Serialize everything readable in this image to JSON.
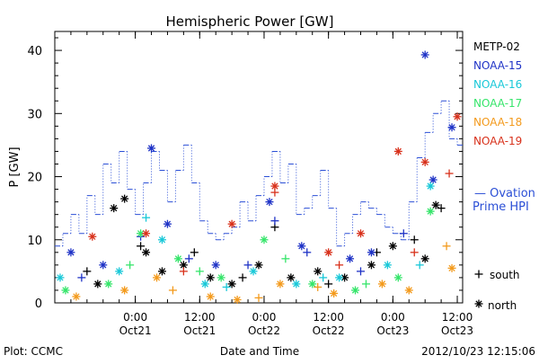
{
  "title": "Hemispheric Power [GW]",
  "footer": {
    "plot_label": "Plot: CCMC",
    "timestamp": "2012/10/23 12:15:06"
  },
  "chart_data": {
    "type": "scatter",
    "title": "Hemispheric Power [GW]",
    "xlabel": "Date and Time",
    "ylabel": "P [GW]",
    "xlim": [
      "2012-10-20T09:00",
      "2012-10-23T13:00"
    ],
    "ylim": [
      0,
      43
    ],
    "x_ticks": [
      {
        "time": "2012-10-21T00:00",
        "label_top": "0:00",
        "label_bottom": "Oct21"
      },
      {
        "time": "2012-10-21T12:00",
        "label_top": "12:00",
        "label_bottom": "Oct21"
      },
      {
        "time": "2012-10-22T00:00",
        "label_top": "0:00",
        "label_bottom": "Oct22"
      },
      {
        "time": "2012-10-22T12:00",
        "label_top": "12:00",
        "label_bottom": "Oct22"
      },
      {
        "time": "2012-10-23T00:00",
        "label_top": "0:00",
        "label_bottom": "Oct23"
      },
      {
        "time": "2012-10-23T12:00",
        "label_top": "12:00",
        "label_bottom": "Oct23"
      }
    ],
    "y_ticks": [
      0,
      10,
      20,
      30,
      40
    ],
    "grid": false,
    "legend_position": "right",
    "symbol_legend": [
      {
        "symbol": "+",
        "label": "south"
      },
      {
        "symbol": "*",
        "label": "north"
      }
    ],
    "ovation": {
      "name": "— Ovation Prime HPI",
      "color": "#2b4fd6",
      "points": [
        [
          "2012-10-20T09:00",
          9
        ],
        [
          "2012-10-20T10:30",
          11
        ],
        [
          "2012-10-20T12:00",
          14
        ],
        [
          "2012-10-20T13:30",
          11
        ],
        [
          "2012-10-20T15:00",
          17
        ],
        [
          "2012-10-20T16:30",
          14
        ],
        [
          "2012-10-20T18:00",
          22
        ],
        [
          "2012-10-20T19:30",
          19
        ],
        [
          "2012-10-20T21:00",
          24
        ],
        [
          "2012-10-20T22:30",
          18
        ],
        [
          "2012-10-21T00:00",
          14
        ],
        [
          "2012-10-21T01:30",
          19
        ],
        [
          "2012-10-21T03:00",
          24
        ],
        [
          "2012-10-21T04:30",
          21
        ],
        [
          "2012-10-21T06:00",
          16
        ],
        [
          "2012-10-21T07:30",
          21
        ],
        [
          "2012-10-21T09:00",
          25
        ],
        [
          "2012-10-21T10:30",
          19
        ],
        [
          "2012-10-21T12:00",
          13
        ],
        [
          "2012-10-21T13:30",
          11
        ],
        [
          "2012-10-21T15:00",
          10
        ],
        [
          "2012-10-21T16:30",
          11
        ],
        [
          "2012-10-21T18:00",
          12
        ],
        [
          "2012-10-21T19:30",
          16
        ],
        [
          "2012-10-21T21:00",
          13
        ],
        [
          "2012-10-21T22:30",
          17
        ],
        [
          "2012-10-22T00:00",
          20
        ],
        [
          "2012-10-22T01:30",
          24
        ],
        [
          "2012-10-22T03:00",
          19
        ],
        [
          "2012-10-22T04:30",
          22
        ],
        [
          "2012-10-22T06:00",
          14
        ],
        [
          "2012-10-22T07:30",
          15
        ],
        [
          "2012-10-22T09:00",
          17
        ],
        [
          "2012-10-22T10:30",
          21
        ],
        [
          "2012-10-22T12:00",
          15
        ],
        [
          "2012-10-22T13:30",
          9
        ],
        [
          "2012-10-22T15:00",
          11
        ],
        [
          "2012-10-22T16:30",
          14
        ],
        [
          "2012-10-22T18:00",
          16
        ],
        [
          "2012-10-22T19:30",
          15
        ],
        [
          "2012-10-22T21:00",
          14
        ],
        [
          "2012-10-22T22:30",
          12
        ],
        [
          "2012-10-23T00:00",
          11
        ],
        [
          "2012-10-23T01:30",
          10
        ],
        [
          "2012-10-23T03:00",
          16
        ],
        [
          "2012-10-23T04:30",
          23
        ],
        [
          "2012-10-23T06:00",
          27
        ],
        [
          "2012-10-23T07:30",
          30
        ],
        [
          "2012-10-23T09:00",
          32
        ],
        [
          "2012-10-23T10:30",
          26
        ],
        [
          "2012-10-23T12:00",
          25
        ]
      ]
    },
    "series": [
      {
        "name": "METP-02",
        "color": "#000000",
        "north": [
          [
            "2012-10-20T17:00",
            3
          ],
          [
            "2012-10-20T20:00",
            15
          ],
          [
            "2012-10-20T22:00",
            16.5
          ],
          [
            "2012-10-21T02:00",
            8
          ],
          [
            "2012-10-21T05:00",
            5
          ],
          [
            "2012-10-21T09:00",
            6
          ],
          [
            "2012-10-21T14:00",
            4
          ],
          [
            "2012-10-21T18:00",
            3
          ],
          [
            "2012-10-21T23:00",
            6
          ],
          [
            "2012-10-22T05:00",
            4
          ],
          [
            "2012-10-22T10:00",
            5
          ],
          [
            "2012-10-22T15:00",
            4
          ],
          [
            "2012-10-22T20:00",
            6
          ],
          [
            "2012-10-23T00:00",
            9
          ],
          [
            "2012-10-23T06:00",
            7
          ],
          [
            "2012-10-23T08:00",
            15.5
          ]
        ],
        "south": [
          [
            "2012-10-20T15:00",
            5
          ],
          [
            "2012-10-21T01:00",
            9
          ],
          [
            "2012-10-21T11:00",
            8
          ],
          [
            "2012-10-21T20:00",
            4
          ],
          [
            "2012-10-22T02:00",
            12
          ],
          [
            "2012-10-22T12:00",
            3
          ],
          [
            "2012-10-22T21:00",
            8
          ],
          [
            "2012-10-23T04:00",
            10
          ],
          [
            "2012-10-23T09:00",
            15
          ]
        ]
      },
      {
        "name": "NOAA-15",
        "color": "#1f33c6",
        "north": [
          [
            "2012-10-20T12:00",
            8
          ],
          [
            "2012-10-20T18:00",
            6
          ],
          [
            "2012-10-21T03:00",
            24.5
          ],
          [
            "2012-10-21T06:00",
            12.5
          ],
          [
            "2012-10-21T15:00",
            6
          ],
          [
            "2012-10-22T01:00",
            16
          ],
          [
            "2012-10-22T07:00",
            9
          ],
          [
            "2012-10-22T16:00",
            7
          ],
          [
            "2012-10-22T20:00",
            8
          ],
          [
            "2012-10-23T06:00",
            39.3
          ],
          [
            "2012-10-23T07:30",
            19.5
          ],
          [
            "2012-10-23T11:00",
            27.8
          ]
        ],
        "south": [
          [
            "2012-10-20T14:00",
            4
          ],
          [
            "2012-10-21T01:00",
            10.5
          ],
          [
            "2012-10-21T10:00",
            7
          ],
          [
            "2012-10-21T21:00",
            6
          ],
          [
            "2012-10-22T02:00",
            13
          ],
          [
            "2012-10-22T08:00",
            8
          ],
          [
            "2012-10-22T18:00",
            5
          ],
          [
            "2012-10-23T02:00",
            11
          ]
        ]
      },
      {
        "name": "NOAA-16",
        "color": "#19c8d8",
        "north": [
          [
            "2012-10-20T10:00",
            4
          ],
          [
            "2012-10-20T21:00",
            5
          ],
          [
            "2012-10-21T05:00",
            10
          ],
          [
            "2012-10-21T13:00",
            3
          ],
          [
            "2012-10-21T22:00",
            5
          ],
          [
            "2012-10-22T06:00",
            3
          ],
          [
            "2012-10-22T14:00",
            4
          ],
          [
            "2012-10-22T23:00",
            6
          ],
          [
            "2012-10-23T07:00",
            18.5
          ]
        ],
        "south": [
          [
            "2012-10-21T02:00",
            13.5
          ],
          [
            "2012-10-21T17:00",
            2.5
          ],
          [
            "2012-10-22T11:00",
            4
          ],
          [
            "2012-10-23T05:00",
            6
          ]
        ]
      },
      {
        "name": "NOAA-17",
        "color": "#35e56a",
        "north": [
          [
            "2012-10-20T11:00",
            2
          ],
          [
            "2012-10-20T19:00",
            3
          ],
          [
            "2012-10-21T01:00",
            11
          ],
          [
            "2012-10-21T08:00",
            7
          ],
          [
            "2012-10-21T16:00",
            4
          ],
          [
            "2012-10-22T00:00",
            10
          ],
          [
            "2012-10-22T09:00",
            3
          ],
          [
            "2012-10-22T17:00",
            2
          ],
          [
            "2012-10-23T01:00",
            4
          ],
          [
            "2012-10-23T07:00",
            14.5
          ]
        ],
        "south": [
          [
            "2012-10-20T23:00",
            6
          ],
          [
            "2012-10-21T12:00",
            5
          ],
          [
            "2012-10-22T04:00",
            7
          ],
          [
            "2012-10-22T19:00",
            3
          ]
        ]
      },
      {
        "name": "NOAA-18",
        "color": "#f39a1c",
        "north": [
          [
            "2012-10-20T13:00",
            1
          ],
          [
            "2012-10-20T22:00",
            2
          ],
          [
            "2012-10-21T04:00",
            4
          ],
          [
            "2012-10-21T14:00",
            1
          ],
          [
            "2012-10-21T19:00",
            0.5
          ],
          [
            "2012-10-22T03:00",
            3
          ],
          [
            "2012-10-22T13:00",
            1.5
          ],
          [
            "2012-10-22T22:00",
            3
          ],
          [
            "2012-10-23T03:00",
            2
          ],
          [
            "2012-10-23T11:00",
            5.5
          ]
        ],
        "south": [
          [
            "2012-10-21T07:00",
            2
          ],
          [
            "2012-10-21T23:00",
            0.8
          ],
          [
            "2012-10-22T10:00",
            2.5
          ],
          [
            "2012-10-23T10:00",
            9
          ]
        ]
      },
      {
        "name": "NOAA-19",
        "color": "#d8311b",
        "north": [
          [
            "2012-10-20T16:00",
            10.5
          ],
          [
            "2012-10-21T02:00",
            11
          ],
          [
            "2012-10-21T18:00",
            12.5
          ],
          [
            "2012-10-22T02:00",
            18.5
          ],
          [
            "2012-10-22T12:00",
            8
          ],
          [
            "2012-10-22T18:00",
            11
          ],
          [
            "2012-10-23T01:00",
            24
          ],
          [
            "2012-10-23T06:00",
            22.3
          ],
          [
            "2012-10-23T12:00",
            29.5
          ]
        ],
        "south": [
          [
            "2012-10-21T09:00",
            5
          ],
          [
            "2012-10-22T02:00",
            17.5
          ],
          [
            "2012-10-22T14:00",
            6
          ],
          [
            "2012-10-23T04:00",
            8
          ],
          [
            "2012-10-23T10:30",
            20.5
          ]
        ]
      }
    ]
  }
}
